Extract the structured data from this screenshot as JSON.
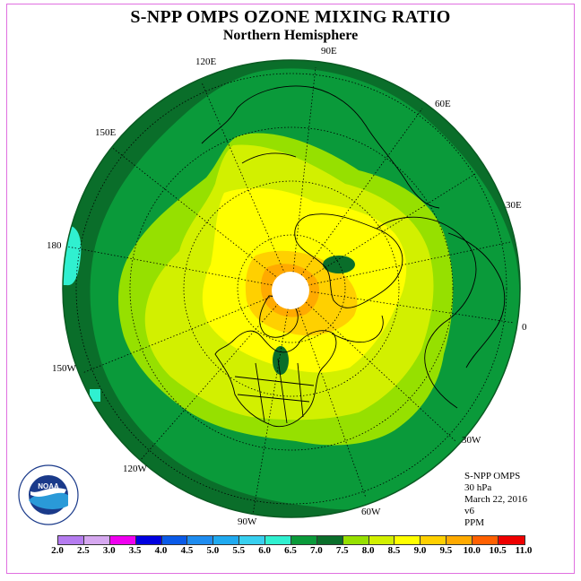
{
  "title": "S-NPP OMPS OZONE MIXING RATIO",
  "subtitle": "Northern Hemisphere",
  "longitude_labels": [
    {
      "key": "90E",
      "text": "90E"
    },
    {
      "key": "60E",
      "text": "60E"
    },
    {
      "key": "120E",
      "text": "120E"
    },
    {
      "key": "150E",
      "text": "150E"
    },
    {
      "key": "30E",
      "text": "30E"
    },
    {
      "key": "180",
      "text": "180"
    },
    {
      "key": "0",
      "text": "0"
    },
    {
      "key": "150W",
      "text": "150W"
    },
    {
      "key": "30W",
      "text": "30W"
    },
    {
      "key": "120W",
      "text": "120W"
    },
    {
      "key": "60W",
      "text": "60W"
    },
    {
      "key": "90W",
      "text": "90W"
    }
  ],
  "info": {
    "instrument": "S-NPP OMPS",
    "pressure": "30 hPa",
    "date": "March 22, 2016",
    "version": "v6",
    "units": "PPM"
  },
  "logo_text": "NOAA",
  "colorbar": {
    "ticks": [
      "2.0",
      "2.5",
      "3.0",
      "3.5",
      "4.0",
      "4.5",
      "5.0",
      "5.5",
      "6.0",
      "6.5",
      "7.0",
      "7.5",
      "8.0",
      "8.5",
      "9.0",
      "9.5",
      "10.0",
      "10.5",
      "11.0"
    ],
    "colors": [
      "#b57cf0",
      "#d6a8f0",
      "#f000f0",
      "#0000e0",
      "#0a5ae8",
      "#1e8cf0",
      "#20aaf0",
      "#38d0f0",
      "#30f0d0",
      "#0a9a3a",
      "#0a6e2a",
      "#96e000",
      "#d2f000",
      "#ffff00",
      "#ffd000",
      "#ffaa00",
      "#ff6000",
      "#ee0000",
      "#8c5a3c"
    ]
  },
  "map_colors": {
    "band_6_0_6_5": "#0a9a3a",
    "band_6_5_7_0": "#0a6e2a",
    "band_7_0_7_5": "#96e000",
    "band_7_5_8_0": "#d2f000",
    "band_8_0_8_5": "#ffff00",
    "band_8_5_9_0": "#ffd000",
    "band_9_0_9_5": "#ffaa00",
    "band_5_5_6_0": "#30f0d0"
  }
}
